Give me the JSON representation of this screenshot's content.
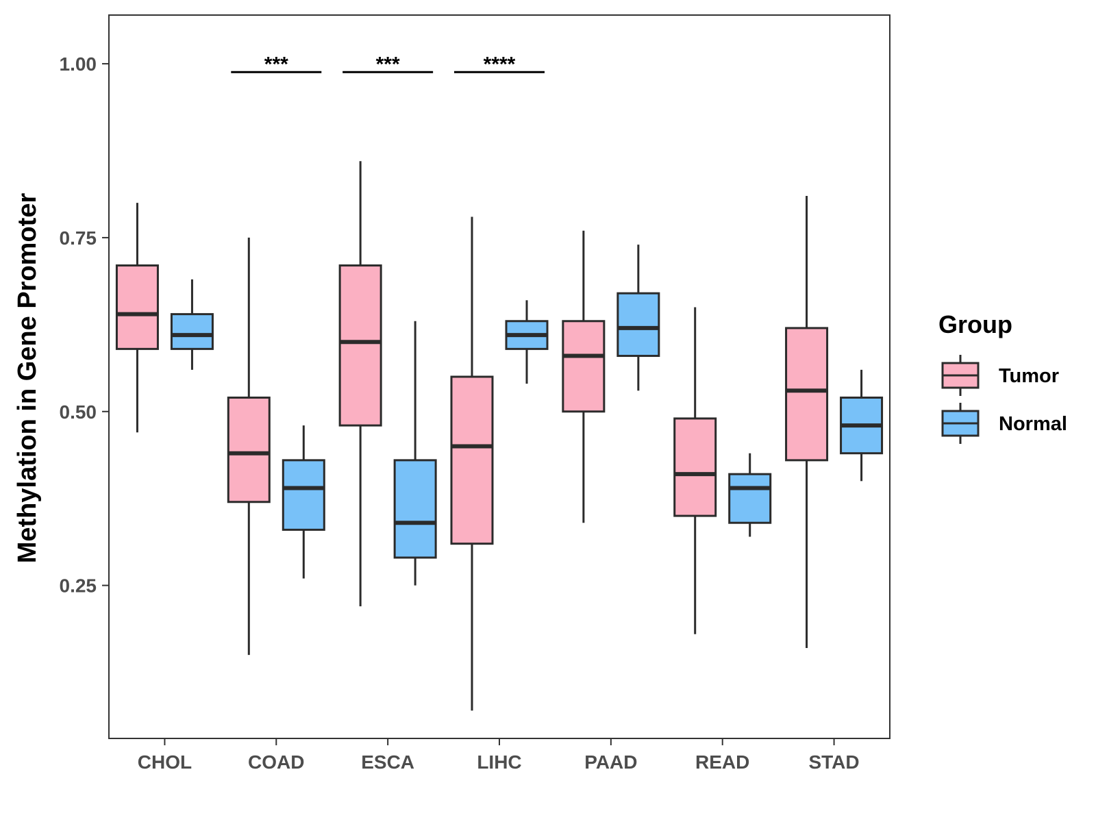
{
  "chart_data": {
    "type": "boxplot",
    "title": "",
    "xlabel": "",
    "ylabel": "Methylation in Gene Promoter",
    "ylim": [
      0.03,
      1.07
    ],
    "yticks": [
      0.25,
      0.5,
      0.75,
      1.0
    ],
    "ytick_labels": [
      "0.25",
      "0.50",
      "0.75",
      "1.00"
    ],
    "categories": [
      "CHOL",
      "COAD",
      "ESCA",
      "LIHC",
      "PAAD",
      "READ",
      "STAD"
    ],
    "legend": {
      "title": "Group",
      "position": "right",
      "entries": [
        {
          "name": "Tumor",
          "color": "#fbb0c2"
        },
        {
          "name": "Normal",
          "color": "#78c1f8"
        }
      ]
    },
    "series": [
      {
        "name": "Tumor",
        "color": "#fbb0c2",
        "boxes": [
          {
            "min": 0.47,
            "q1": 0.59,
            "median": 0.64,
            "q3": 0.71,
            "max": 0.8
          },
          {
            "min": 0.15,
            "q1": 0.37,
            "median": 0.44,
            "q3": 0.52,
            "max": 0.75
          },
          {
            "min": 0.22,
            "q1": 0.48,
            "median": 0.6,
            "q3": 0.71,
            "max": 0.86
          },
          {
            "min": 0.07,
            "q1": 0.31,
            "median": 0.45,
            "q3": 0.55,
            "max": 0.78
          },
          {
            "min": 0.34,
            "q1": 0.5,
            "median": 0.58,
            "q3": 0.63,
            "max": 0.76
          },
          {
            "min": 0.18,
            "q1": 0.35,
            "median": 0.41,
            "q3": 0.49,
            "max": 0.65
          },
          {
            "min": 0.16,
            "q1": 0.43,
            "median": 0.53,
            "q3": 0.62,
            "max": 0.81
          }
        ]
      },
      {
        "name": "Normal",
        "color": "#78c1f8",
        "boxes": [
          {
            "min": 0.56,
            "q1": 0.59,
            "median": 0.61,
            "q3": 0.64,
            "max": 0.69
          },
          {
            "min": 0.26,
            "q1": 0.33,
            "median": 0.39,
            "q3": 0.43,
            "max": 0.48
          },
          {
            "min": 0.25,
            "q1": 0.29,
            "median": 0.34,
            "q3": 0.43,
            "max": 0.63
          },
          {
            "min": 0.54,
            "q1": 0.59,
            "median": 0.61,
            "q3": 0.63,
            "max": 0.66
          },
          {
            "min": 0.53,
            "q1": 0.58,
            "median": 0.62,
            "q3": 0.67,
            "max": 0.74
          },
          {
            "min": 0.32,
            "q1": 0.34,
            "median": 0.39,
            "q3": 0.41,
            "max": 0.44
          },
          {
            "min": 0.4,
            "q1": 0.44,
            "median": 0.48,
            "q3": 0.52,
            "max": 0.56
          }
        ]
      }
    ],
    "annotations": [
      {
        "category": "COAD",
        "label": "***"
      },
      {
        "category": "ESCA",
        "label": "***"
      },
      {
        "category": "LIHC",
        "label": "****"
      }
    ]
  }
}
